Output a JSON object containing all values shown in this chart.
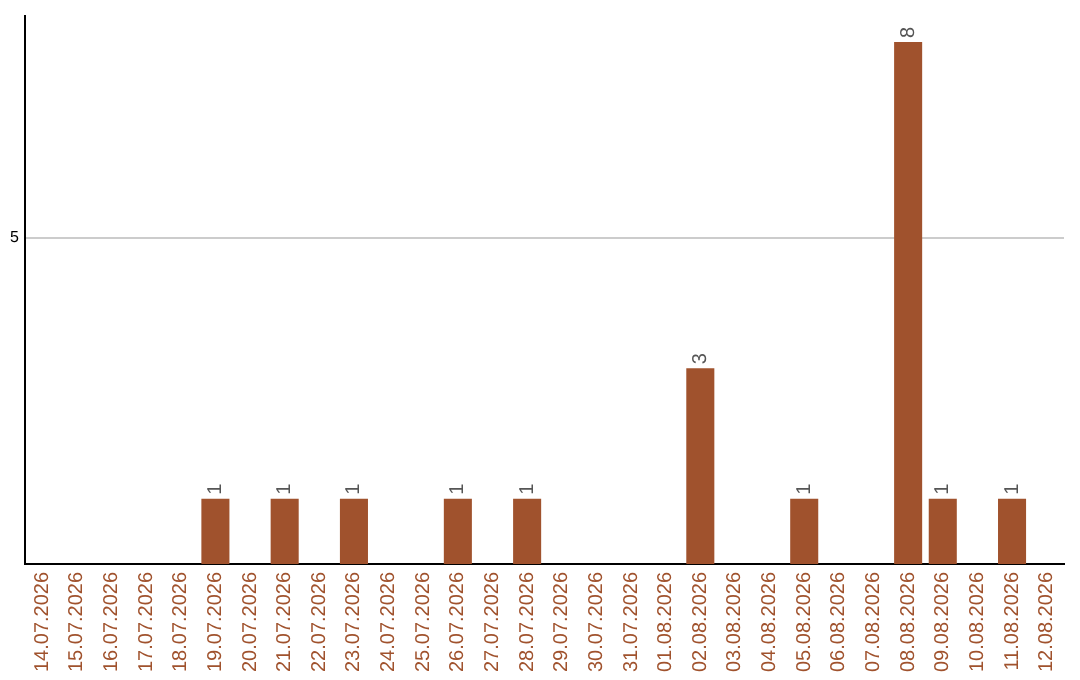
{
  "chart_data": {
    "type": "bar",
    "categories": [
      "14.07.2026",
      "15.07.2026",
      "16.07.2026",
      "17.07.2026",
      "18.07.2026",
      "19.07.2026",
      "20.07.2026",
      "21.07.2026",
      "22.07.2026",
      "23.07.2026",
      "24.07.2026",
      "25.07.2026",
      "26.07.2026",
      "27.07.2026",
      "28.07.2026",
      "29.07.2026",
      "30.07.2026",
      "31.07.2026",
      "01.08.2026",
      "02.08.2026",
      "03.08.2026",
      "04.08.2026",
      "05.08.2026",
      "06.08.2026",
      "07.08.2026",
      "08.08.2026",
      "09.08.2026",
      "10.08.2026",
      "11.08.2026",
      "12.08.2026"
    ],
    "values": [
      0,
      0,
      0,
      0,
      0,
      1,
      0,
      1,
      0,
      1,
      0,
      0,
      1,
      0,
      1,
      0,
      0,
      0,
      0,
      3,
      0,
      0,
      1,
      0,
      0,
      8,
      1,
      0,
      1,
      0
    ],
    "value_labels": [
      null,
      null,
      null,
      null,
      null,
      "1",
      null,
      "1",
      null,
      "1",
      null,
      null,
      "1",
      null,
      "1",
      null,
      null,
      null,
      null,
      "3",
      null,
      null,
      "1",
      null,
      null,
      "8",
      "1",
      null,
      "1",
      null
    ],
    "color": "#a0522d",
    "ylim": [
      0,
      8.4
    ],
    "yticks": [
      5
    ],
    "grid": "y",
    "legend": false
  }
}
